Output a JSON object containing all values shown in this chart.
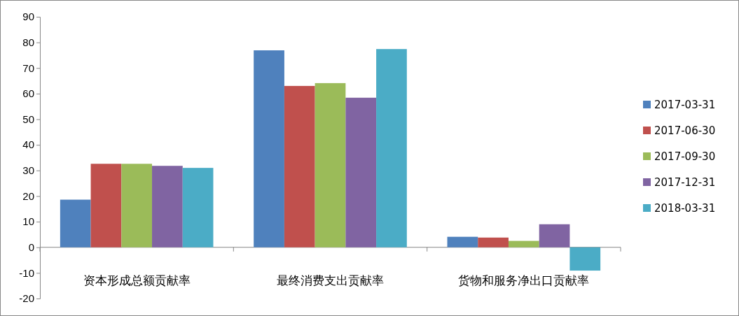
{
  "chart_data": {
    "type": "bar",
    "categories": [
      "资本形成总额贡献率",
      "最终消费支出贡献率",
      "货物和服务净出口贡献率"
    ],
    "series": [
      {
        "name": "2017-03-31",
        "color": "#4f81bd",
        "values": [
          18.6,
          76.9,
          4.1
        ]
      },
      {
        "name": "2017-06-30",
        "color": "#c0504d",
        "values": [
          32.6,
          63.0,
          3.8
        ]
      },
      {
        "name": "2017-09-30",
        "color": "#9bbb59",
        "values": [
          32.6,
          64.1,
          2.5
        ]
      },
      {
        "name": "2017-12-31",
        "color": "#8064a2",
        "values": [
          31.8,
          58.4,
          9.0
        ]
      },
      {
        "name": "2018-03-31",
        "color": "#4bacc6",
        "values": [
          31.0,
          77.4,
          -9.1
        ]
      }
    ],
    "ylim": [
      -20,
      90
    ],
    "yticks": [
      -20,
      -10,
      0,
      10,
      20,
      30,
      40,
      50,
      60,
      70,
      80,
      90
    ],
    "grid": false,
    "legend": "right"
  }
}
